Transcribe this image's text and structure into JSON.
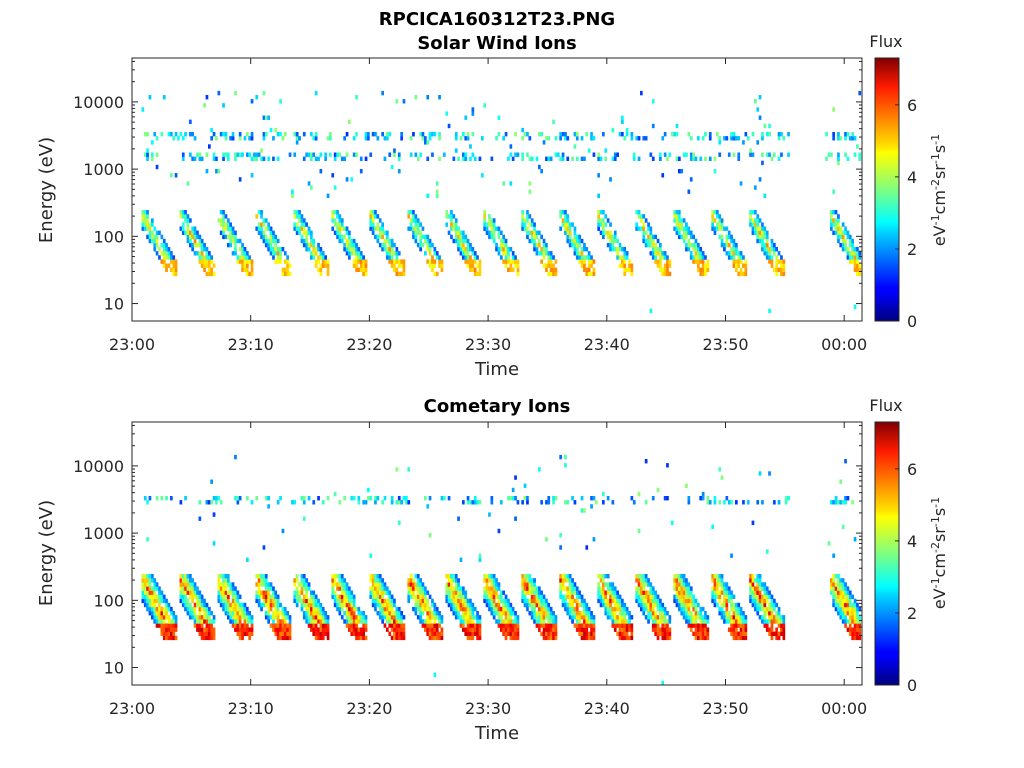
{
  "figure": {
    "title": "RPCICA160312T23.PNG"
  },
  "chart_data": [
    {
      "type": "heatmap",
      "title": "Solar Wind Ions",
      "xlabel": "Time",
      "ylabel": "Energy (eV)",
      "x_tick_labels": [
        "23:00",
        "23:10",
        "23:20",
        "23:30",
        "23:40",
        "23:50",
        "00:00"
      ],
      "x_tick_minutes": [
        0,
        10,
        20,
        30,
        40,
        50,
        60
      ],
      "xlim_minutes": [
        0,
        61.5
      ],
      "y_scale": "log",
      "ylim": [
        5.5,
        45000
      ],
      "y_ticks": [
        10,
        100,
        1000,
        10000
      ],
      "y_tick_labels": [
        "10",
        "100",
        "1000",
        "10000"
      ],
      "colorbar": {
        "label": "Flux",
        "units": "eV-1cm-2sr-1s-1",
        "colormap": "jet",
        "range": [
          0,
          7.3
        ],
        "ticks": [
          0,
          2,
          4,
          6
        ]
      },
      "scan_start_minutes": [
        0.7,
        3.9,
        7.1,
        10.3,
        13.5,
        16.7,
        19.9,
        23.1,
        26.3,
        29.5,
        32.7,
        35.9,
        39.1,
        42.3,
        45.5,
        48.7,
        51.9,
        58.7
      ],
      "gap_minutes": [
        55.2,
        58.4
      ],
      "peak_flux": 5.5,
      "low_energy_cutoff_eV": 25,
      "high_energy_bands_eV": [
        1600,
        3000
      ]
    },
    {
      "type": "heatmap",
      "title": "Cometary Ions",
      "xlabel": "Time",
      "ylabel": "Energy (eV)",
      "x_tick_labels": [
        "23:00",
        "23:10",
        "23:20",
        "23:30",
        "23:40",
        "23:50",
        "00:00"
      ],
      "x_tick_minutes": [
        0,
        10,
        20,
        30,
        40,
        50,
        60
      ],
      "xlim_minutes": [
        0,
        61.5
      ],
      "y_scale": "log",
      "ylim": [
        5.5,
        45000
      ],
      "y_ticks": [
        10,
        100,
        1000,
        10000
      ],
      "y_tick_labels": [
        "10",
        "100",
        "1000",
        "10000"
      ],
      "colorbar": {
        "label": "Flux",
        "units": "eV-1cm-2sr-1s-1",
        "colormap": "jet",
        "range": [
          0,
          7.3
        ],
        "ticks": [
          0,
          2,
          4,
          6
        ]
      },
      "scan_start_minutes": [
        0.7,
        3.9,
        7.1,
        10.3,
        13.5,
        16.7,
        19.9,
        23.1,
        26.3,
        29.5,
        32.7,
        35.9,
        39.1,
        42.3,
        45.5,
        48.7,
        51.9,
        58.7
      ],
      "gap_minutes": [
        55.2,
        58.4
      ],
      "peak_flux": 6.8,
      "low_energy_cutoff_eV": 25,
      "high_energy_bands_eV": [
        3000
      ]
    }
  ]
}
